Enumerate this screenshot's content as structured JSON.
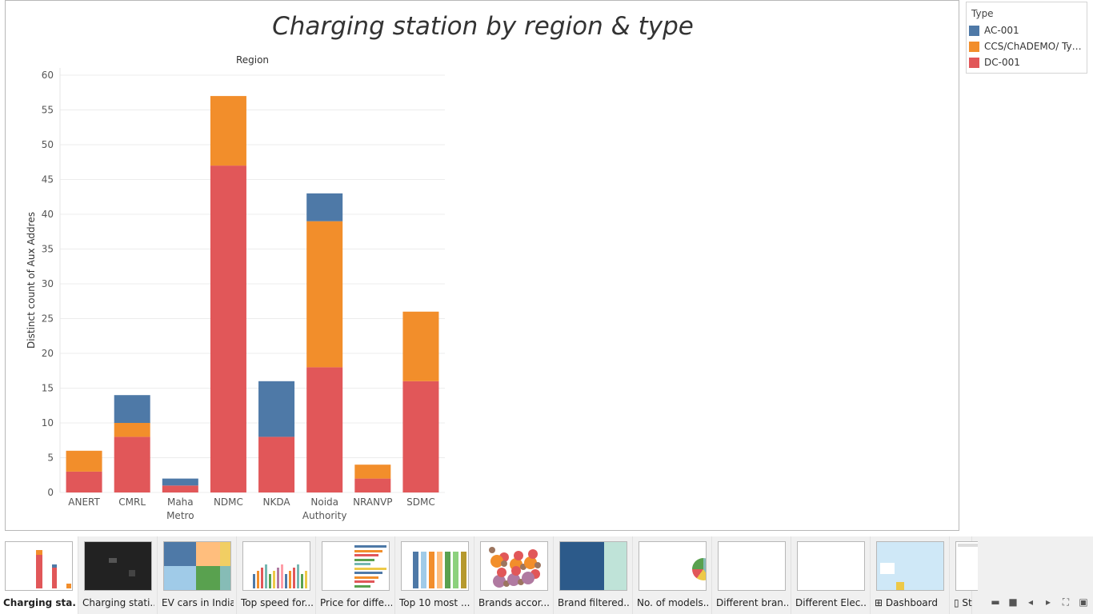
{
  "sheet_title": "Charging station by region & type",
  "chart_data": {
    "type": "bar",
    "stacked": true,
    "title": "Charging station by region & type",
    "column_header": "Region",
    "xlabel": "",
    "ylabel": "Distinct count of Aux Addres",
    "ylim": [
      0,
      60
    ],
    "yticks": [
      0,
      5,
      10,
      15,
      20,
      25,
      30,
      35,
      40,
      45,
      50,
      55,
      60
    ],
    "grid": true,
    "legend_position": "right",
    "categories": [
      "ANERT",
      "CMRL",
      "Maha Metro",
      "NDMC",
      "NKDA",
      "Noida Authority",
      "NRANVP",
      "SDMC"
    ],
    "category_lines": [
      [
        "ANERT"
      ],
      [
        "CMRL"
      ],
      [
        "Maha",
        "Metro"
      ],
      [
        "NDMC"
      ],
      [
        "NKDA"
      ],
      [
        "Noida",
        "Authority"
      ],
      [
        "NRANVP"
      ],
      [
        "SDMC"
      ]
    ],
    "series": [
      {
        "name": "DC-001",
        "color": "#e15759",
        "values": [
          3,
          8,
          1,
          47,
          8,
          18,
          2,
          16
        ]
      },
      {
        "name": "CCS/ChADEMO/ Type..",
        "color": "#f28e2b",
        "values": [
          3,
          2,
          0,
          10,
          0,
          21,
          2,
          10
        ]
      },
      {
        "name": "AC-001",
        "color": "#4e79a7",
        "values": [
          0,
          4,
          1,
          0,
          8,
          4,
          0,
          0
        ]
      }
    ]
  },
  "legend": {
    "title": "Type",
    "items": [
      {
        "label": "AC-001",
        "color": "#4e79a7"
      },
      {
        "label": "CCS/ChADEMO/ Type..",
        "color": "#f28e2b"
      },
      {
        "label": "DC-001",
        "color": "#e15759"
      }
    ]
  },
  "tabs": [
    {
      "label": "Charging sta...",
      "active": true,
      "thumb": "bars"
    },
    {
      "label": "Charging stati...",
      "active": false,
      "thumb": "map"
    },
    {
      "label": "EV cars in India",
      "active": false,
      "thumb": "treemap"
    },
    {
      "label": "Top speed for...",
      "active": false,
      "thumb": "smallbars"
    },
    {
      "label": "Price for diffe...",
      "active": false,
      "thumb": "hbars"
    },
    {
      "label": "Top 10 most ...",
      "active": false,
      "thumb": "colbars"
    },
    {
      "label": "Brands accor...",
      "active": false,
      "thumb": "bubbles"
    },
    {
      "label": "Brand filtered...",
      "active": false,
      "thumb": "blocks"
    },
    {
      "label": "No. of models...",
      "active": false,
      "thumb": "pie"
    },
    {
      "label": "Different bran...",
      "active": false,
      "thumb": "blank"
    },
    {
      "label": "Different Elec...",
      "active": false,
      "thumb": "blank"
    },
    {
      "label": "Dashboard",
      "active": false,
      "thumb": "dashboard",
      "icon": "dashboard-icon"
    },
    {
      "label": "St",
      "active": false,
      "thumb": "story",
      "icon": "story-icon"
    }
  ],
  "controls": [
    {
      "name": "show-filmstrip-icon",
      "glyph": "▬"
    },
    {
      "name": "show-tabs-icon",
      "glyph": "■"
    },
    {
      "name": "scroll-left-icon",
      "glyph": "◂"
    },
    {
      "name": "scroll-right-icon",
      "glyph": "▸"
    },
    {
      "name": "fit-icon",
      "glyph": "⛶"
    },
    {
      "name": "presentation-icon",
      "glyph": "▣"
    }
  ]
}
